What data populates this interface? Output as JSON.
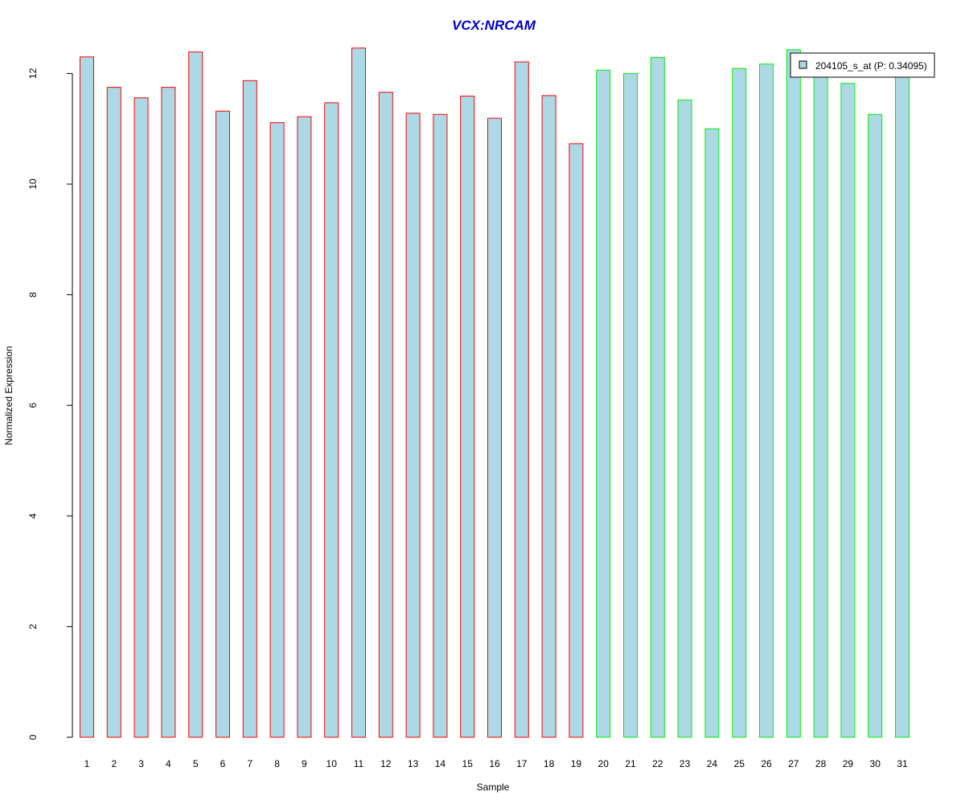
{
  "chart_data": {
    "type": "bar",
    "title": "VCX:NRCAM",
    "xlabel": "Sample",
    "ylabel": "Normalized Expression",
    "ylim": [
      0,
      12.5
    ],
    "yticks": [
      0,
      2,
      4,
      6,
      8,
      10,
      12
    ],
    "grid": false,
    "legend": {
      "placement": "top-right",
      "entries": [
        "204105_s_at (P: 0.34095)"
      ]
    },
    "colors": {
      "title": "#0000cc",
      "bar_fill": "#add8e6",
      "group1_border": "#ff0000",
      "group2_border": "#00ee00",
      "axis": "#000000"
    },
    "categories": [
      "1",
      "2",
      "3",
      "4",
      "5",
      "6",
      "7",
      "8",
      "9",
      "10",
      "11",
      "12",
      "13",
      "14",
      "15",
      "16",
      "17",
      "18",
      "19",
      "20",
      "21",
      "22",
      "23",
      "24",
      "25",
      "26",
      "27",
      "28",
      "29",
      "30",
      "31"
    ],
    "values": [
      12.3,
      11.75,
      11.56,
      11.75,
      12.39,
      11.32,
      11.87,
      11.11,
      11.22,
      11.47,
      12.46,
      11.66,
      11.28,
      11.26,
      11.59,
      11.19,
      12.21,
      11.6,
      10.73,
      12.06,
      12.0,
      12.29,
      11.52,
      11.0,
      12.09,
      12.17,
      12.43,
      12.06,
      11.82,
      11.26,
      12.04
    ],
    "groups": [
      1,
      1,
      1,
      1,
      1,
      1,
      1,
      1,
      1,
      1,
      1,
      1,
      1,
      1,
      1,
      1,
      1,
      1,
      1,
      2,
      2,
      2,
      2,
      2,
      2,
      2,
      2,
      2,
      2,
      2,
      2
    ]
  }
}
